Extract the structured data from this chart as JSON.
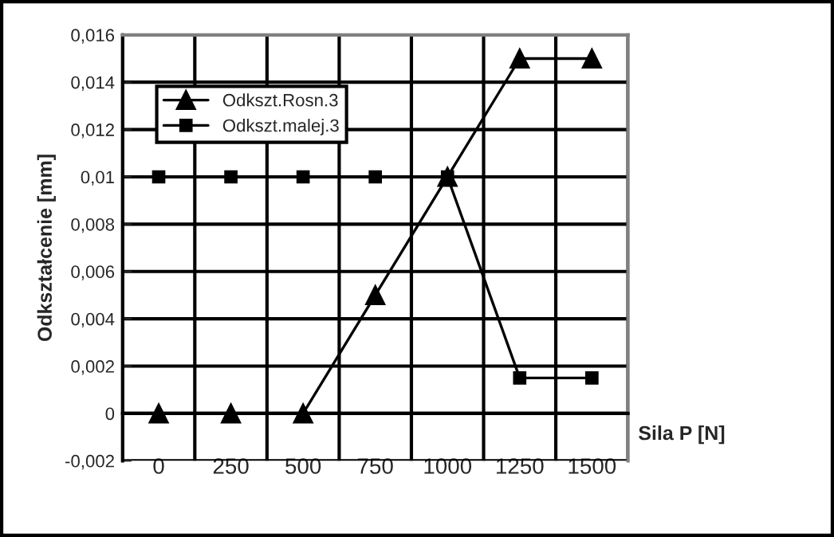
{
  "chart_data": {
    "type": "line",
    "xlabel": "Sila P [N]",
    "ylabel": "Odkształcenie [mm]",
    "categories": [
      "0",
      "250",
      "500",
      "750",
      "1000",
      "1250",
      "1500"
    ],
    "series": [
      {
        "name": "Odkszt.Rosn.3",
        "color": "#000000",
        "marker": "triangle",
        "values": [
          0,
          0,
          0,
          0.005,
          0.01,
          0.015,
          0.015
        ]
      },
      {
        "name": "Odkszt.malej.3",
        "color": "#000000",
        "marker": "square",
        "values": [
          0.01,
          0.01,
          0.01,
          0.01,
          0.01,
          0.0015,
          0.0015
        ]
      }
    ],
    "ylim": [
      -0.002,
      0.016
    ],
    "yticks": [
      {
        "value": -0.002,
        "label": "-0,002"
      },
      0,
      {
        "value": 0.002,
        "label": "0,002"
      },
      {
        "value": 0.004,
        "label": "0,004"
      },
      {
        "value": 0.006,
        "label": "0,006"
      },
      {
        "value": 0.008,
        "label": "0,008"
      },
      {
        "value": 0.01,
        "label": "0,01"
      },
      {
        "value": 0.012,
        "label": "0,012"
      },
      {
        "value": 0.014,
        "label": "0,014"
      },
      {
        "value": 0.016,
        "label": "0,016"
      }
    ],
    "grid": true,
    "legend": "top left",
    "line_style": "solid"
  }
}
